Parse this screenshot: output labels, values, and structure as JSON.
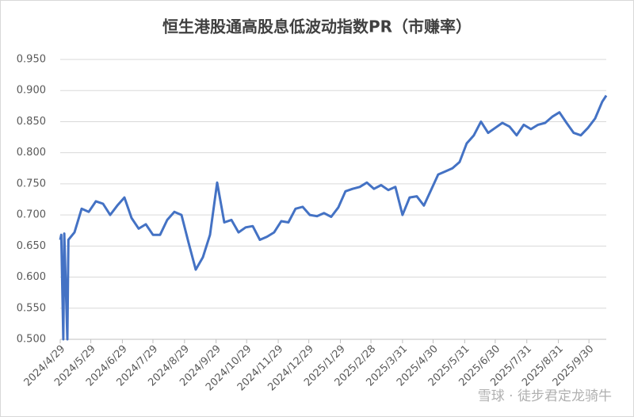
{
  "chart_data": {
    "type": "line",
    "title": "恒生港股通高股息低波动指数PR（市赚率）",
    "watermark": "雪球 · 徒步君定龙骑牛",
    "x": [
      "2024/4/29",
      "2024/4/30",
      "2024/5/2",
      "2024/5/3",
      "2024/5/6",
      "2024/5/7",
      "2024/5/13",
      "2024/5/20",
      "2024/5/27",
      "2024/6/3",
      "2024/6/10",
      "2024/6/17",
      "2024/6/24",
      "2024/7/1",
      "2024/7/8",
      "2024/7/15",
      "2024/7/22",
      "2024/7/29",
      "2024/8/5",
      "2024/8/12",
      "2024/8/19",
      "2024/8/26",
      "2024/9/2",
      "2024/9/9",
      "2024/9/16",
      "2024/9/23",
      "2024/9/30",
      "2024/10/7",
      "2024/10/14",
      "2024/10/21",
      "2024/10/28",
      "2024/11/4",
      "2024/11/11",
      "2024/11/18",
      "2024/11/25",
      "2024/12/2",
      "2024/12/9",
      "2024/12/16",
      "2024/12/23",
      "2024/12/30",
      "2025/1/6",
      "2025/1/13",
      "2025/1/20",
      "2025/1/27",
      "2025/2/3",
      "2025/2/10",
      "2025/2/17",
      "2025/2/24",
      "2025/3/3",
      "2025/3/10",
      "2025/3/17",
      "2025/3/24",
      "2025/3/31",
      "2025/4/7",
      "2025/4/14",
      "2025/4/21",
      "2025/4/28",
      "2025/5/5",
      "2025/5/12",
      "2025/5/19",
      "2025/5/26",
      "2025/6/2",
      "2025/6/9",
      "2025/6/16",
      "2025/6/23",
      "2025/6/30",
      "2025/7/7",
      "2025/7/14",
      "2025/7/21",
      "2025/7/28",
      "2025/8/4",
      "2025/8/11",
      "2025/8/18",
      "2025/8/25",
      "2025/9/1",
      "2025/9/8",
      "2025/9/15",
      "2025/9/22",
      "2025/9/29",
      "2025/10/6",
      "2025/10/13",
      "2025/10/17"
    ],
    "series": [
      {
        "name": "PR",
        "color": "#4472c4",
        "values": [
          0.66,
          0.668,
          0.5,
          0.67,
          0.5,
          0.66,
          0.672,
          0.71,
          0.705,
          0.722,
          0.718,
          0.7,
          0.715,
          0.728,
          0.695,
          0.678,
          0.685,
          0.668,
          0.668,
          0.692,
          0.705,
          0.7,
          0.655,
          0.612,
          0.632,
          0.668,
          0.752,
          0.688,
          0.692,
          0.672,
          0.68,
          0.682,
          0.66,
          0.665,
          0.672,
          0.69,
          0.688,
          0.71,
          0.713,
          0.7,
          0.698,
          0.703,
          0.697,
          0.712,
          0.738,
          0.742,
          0.745,
          0.752,
          0.742,
          0.748,
          0.74,
          0.745,
          0.7,
          0.728,
          0.73,
          0.715,
          0.74,
          0.765,
          0.77,
          0.775,
          0.785,
          0.815,
          0.828,
          0.85,
          0.832,
          0.84,
          0.848,
          0.842,
          0.828,
          0.845,
          0.838,
          0.845,
          0.848,
          0.858,
          0.865,
          0.848,
          0.832,
          0.828,
          0.84,
          0.855,
          0.882,
          0.892
        ]
      }
    ],
    "xlim": [
      "2024/4/29",
      "2025/10/17"
    ],
    "xticks": [
      "2024/4/29",
      "2024/5/29",
      "2024/6/29",
      "2024/7/29",
      "2024/8/29",
      "2024/9/29",
      "2024/10/29",
      "2024/11/29",
      "2024/12/29",
      "2025/1/29",
      "2025/2/28",
      "2025/3/31",
      "2025/4/30",
      "2025/5/31",
      "2025/6/30",
      "2025/7/31",
      "2025/8/31",
      "2025/9/30"
    ],
    "ylim": [
      0.5,
      0.95
    ],
    "yticks": [
      {
        "value": 0.5,
        "label": "0.500"
      },
      {
        "value": 0.55,
        "label": "0.550"
      },
      {
        "value": 0.6,
        "label": "0.600"
      },
      {
        "value": 0.65,
        "label": "0.650"
      },
      {
        "value": 0.7,
        "label": "0.700"
      },
      {
        "value": 0.75,
        "label": "0.750"
      },
      {
        "value": 0.8,
        "label": "0.800"
      },
      {
        "value": 0.85,
        "label": "0.850"
      },
      {
        "value": 0.9,
        "label": "0.900"
      },
      {
        "value": 0.95,
        "label": "0.950"
      }
    ],
    "grid": true
  }
}
